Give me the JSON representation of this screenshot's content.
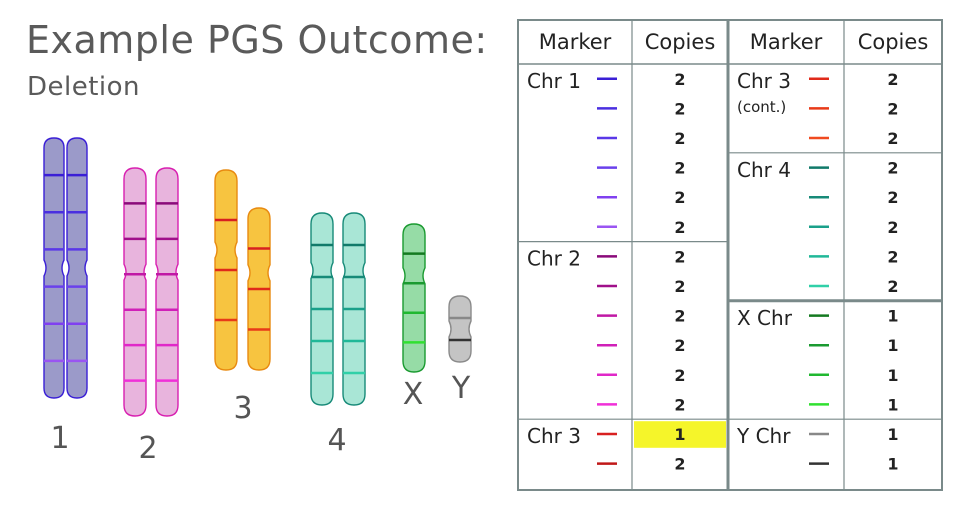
{
  "title": "Example PGS Outcome:",
  "subtitle": "Deletion",
  "chromosomes": [
    {
      "label": "1",
      "fill": "#9b9ac9",
      "stroke": "#3a1fd6",
      "count": 2,
      "bands": [
        "#3a1fd6",
        "#4a2fe0",
        "#5a38e8",
        "#6a40ec",
        "#8040f0",
        "#9a55f2"
      ],
      "centromere": 0.5
    },
    {
      "label": "2",
      "fill": "#e8b4dd",
      "stroke": "#d81fb0",
      "count": 2,
      "bands": [
        "#8a0a7a",
        "#a0108a",
        "#c018a5",
        "#d020b8",
        "#e028c8",
        "#f030d8"
      ],
      "centromere": 0.42
    },
    {
      "label": "3",
      "fill": "#f7c440",
      "stroke": "#e88a10",
      "count": 2,
      "bands": [
        "#d82020",
        "#e02a1a",
        "#e83a18"
      ],
      "centromere": 0.4,
      "deleted_copy_bands": 2
    },
    {
      "label": "4",
      "fill": "#a9e6d6",
      "stroke": "#178a78",
      "count": 2,
      "bands": [
        "#117a6a",
        "#178a78",
        "#1aa08a",
        "#20b898",
        "#30d0a8"
      ],
      "centromere": 0.3
    },
    {
      "label": "X",
      "fill": "#96dca6",
      "stroke": "#1a9a30",
      "count": 1,
      "bands": [
        "#147a20",
        "#1a9a30",
        "#20b830",
        "#30e030"
      ],
      "centromere": 0.35
    },
    {
      "label": "Y",
      "fill": "#c4c4c4",
      "stroke": "#8a8a8a",
      "count": 1,
      "bands": [
        "#888888",
        "#333333"
      ],
      "centromere": 0.5
    }
  ],
  "table": {
    "headers": [
      "Marker",
      "Copies"
    ],
    "left_column": [
      {
        "chr": "Chr 1",
        "markers": [
          {
            "color": "#3a1fd6",
            "copies": "2"
          },
          {
            "color": "#4a2fe0",
            "copies": "2"
          },
          {
            "color": "#5a38e8",
            "copies": "2"
          },
          {
            "color": "#6a40ec",
            "copies": "2"
          },
          {
            "color": "#8040f0",
            "copies": "2"
          },
          {
            "color": "#9a55f2",
            "copies": "2"
          }
        ]
      },
      {
        "chr": "Chr 2",
        "markers": [
          {
            "color": "#8a0a7a",
            "copies": "2"
          },
          {
            "color": "#a0108a",
            "copies": "2"
          },
          {
            "color": "#c018a5",
            "copies": "2"
          },
          {
            "color": "#d020b8",
            "copies": "2"
          },
          {
            "color": "#e028c8",
            "copies": "2"
          },
          {
            "color": "#f030d8",
            "copies": "2"
          }
        ]
      },
      {
        "chr": "Chr 3",
        "markers": [
          {
            "color": "#d82020",
            "copies": "1",
            "highlight": true
          },
          {
            "color": "#c01818",
            "copies": "2"
          }
        ]
      }
    ],
    "right_column": [
      {
        "chr": "Chr 3",
        "sub": "(cont.)",
        "markers": [
          {
            "color": "#e02a1a",
            "copies": "2"
          },
          {
            "color": "#e83a18",
            "copies": "2"
          },
          {
            "color": "#f04a20",
            "copies": "2"
          }
        ]
      },
      {
        "chr": "Chr 4",
        "markers": [
          {
            "color": "#117a6a",
            "copies": "2"
          },
          {
            "color": "#178a78",
            "copies": "2"
          },
          {
            "color": "#1aa08a",
            "copies": "2"
          },
          {
            "color": "#20b898",
            "copies": "2"
          },
          {
            "color": "#30d0a8",
            "copies": "2"
          }
        ]
      },
      {
        "chr": "X Chr",
        "markers": [
          {
            "color": "#147a20",
            "copies": "1"
          },
          {
            "color": "#1a9a30",
            "copies": "1"
          },
          {
            "color": "#20b830",
            "copies": "1"
          },
          {
            "color": "#30e030",
            "copies": "1"
          }
        ]
      },
      {
        "chr": "Y Chr",
        "markers": [
          {
            "color": "#888888",
            "copies": "1"
          },
          {
            "color": "#333333",
            "copies": "1"
          }
        ]
      }
    ],
    "highlight_color": "#f5f52a"
  }
}
